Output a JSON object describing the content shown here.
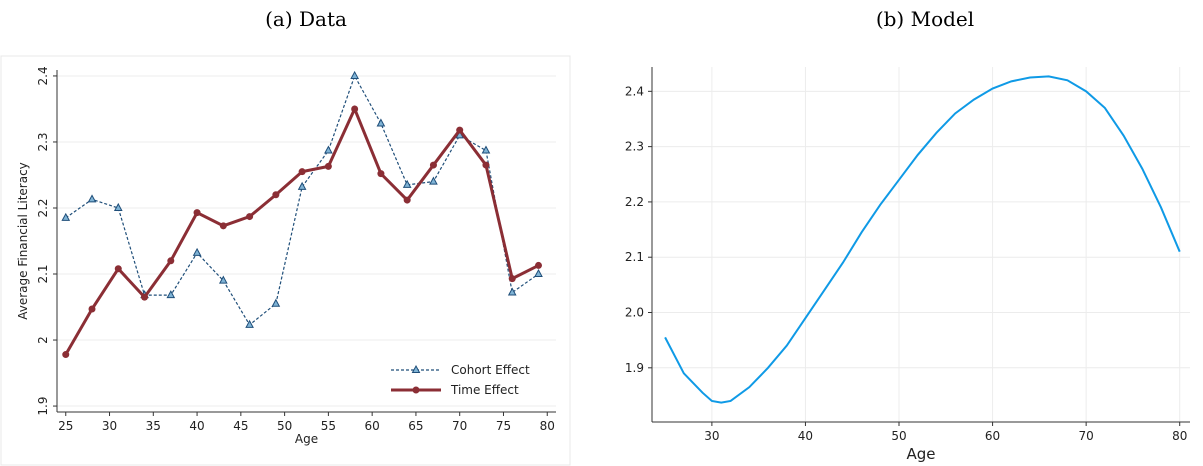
{
  "chart_data": [
    {
      "type": "line",
      "title": "(a) Data",
      "xlabel": "Age",
      "ylabel": "Average Financial Literacy",
      "x": [
        25,
        28,
        31,
        34,
        37,
        40,
        43,
        46,
        49,
        52,
        55,
        58,
        61,
        64,
        67,
        70,
        73,
        76,
        79
      ],
      "series": [
        {
          "name": "Cohort Effect",
          "color": "#1f4e79",
          "linestyle": "dashed",
          "marker": "triangle",
          "values": [
            2.185,
            2.213,
            2.2,
            2.068,
            2.068,
            2.132,
            2.09,
            2.023,
            2.055,
            2.232,
            2.287,
            2.4,
            2.328,
            2.235,
            2.24,
            2.31,
            2.287,
            2.072,
            2.1
          ]
        },
        {
          "name": "Time Effect",
          "color": "#8b2e35",
          "linestyle": "solid",
          "marker": "circle",
          "values": [
            1.978,
            2.047,
            2.108,
            2.065,
            2.12,
            2.193,
            2.173,
            2.187,
            2.22,
            2.255,
            2.263,
            2.35,
            2.252,
            2.212,
            2.265,
            2.318,
            2.265,
            2.093,
            2.113
          ]
        }
      ],
      "xlim": [
        24,
        81
      ],
      "xticks": [
        25,
        30,
        35,
        40,
        45,
        50,
        55,
        60,
        65,
        70,
        75,
        80
      ],
      "ylim": [
        1.891,
        2.409
      ],
      "yticks": [
        1.9,
        2,
        2.1,
        2.2,
        2.3,
        2.4
      ],
      "grid": "y",
      "legend": "lower right"
    },
    {
      "type": "line",
      "title": "(b) Model",
      "xlabel": "Age",
      "x": [
        25,
        27,
        29,
        30,
        31,
        32,
        34,
        36,
        38,
        40,
        42,
        44,
        46,
        48,
        50,
        52,
        54,
        56,
        58,
        60,
        62,
        64,
        66,
        68,
        70,
        72,
        74,
        76,
        78,
        80
      ],
      "series": [
        {
          "color": "#0f9ae6",
          "linestyle": "solid",
          "values": [
            1.955,
            1.89,
            1.855,
            1.84,
            1.837,
            1.84,
            1.865,
            1.9,
            1.94,
            1.99,
            2.04,
            2.09,
            2.145,
            2.195,
            2.24,
            2.285,
            2.325,
            2.36,
            2.385,
            2.405,
            2.418,
            2.425,
            2.427,
            2.42,
            2.4,
            2.37,
            2.32,
            2.26,
            2.19,
            2.11
          ]
        }
      ],
      "xlim": [
        23.6,
        81.1
      ],
      "xticks": [
        30,
        40,
        50,
        60,
        70,
        80
      ],
      "ylim": [
        1.802,
        2.444
      ],
      "yticks": [
        1.9,
        {
          "value": 2,
          "label": "2.0"
        },
        2.1,
        2.2,
        2.3,
        2.4
      ],
      "grid": "both"
    }
  ]
}
